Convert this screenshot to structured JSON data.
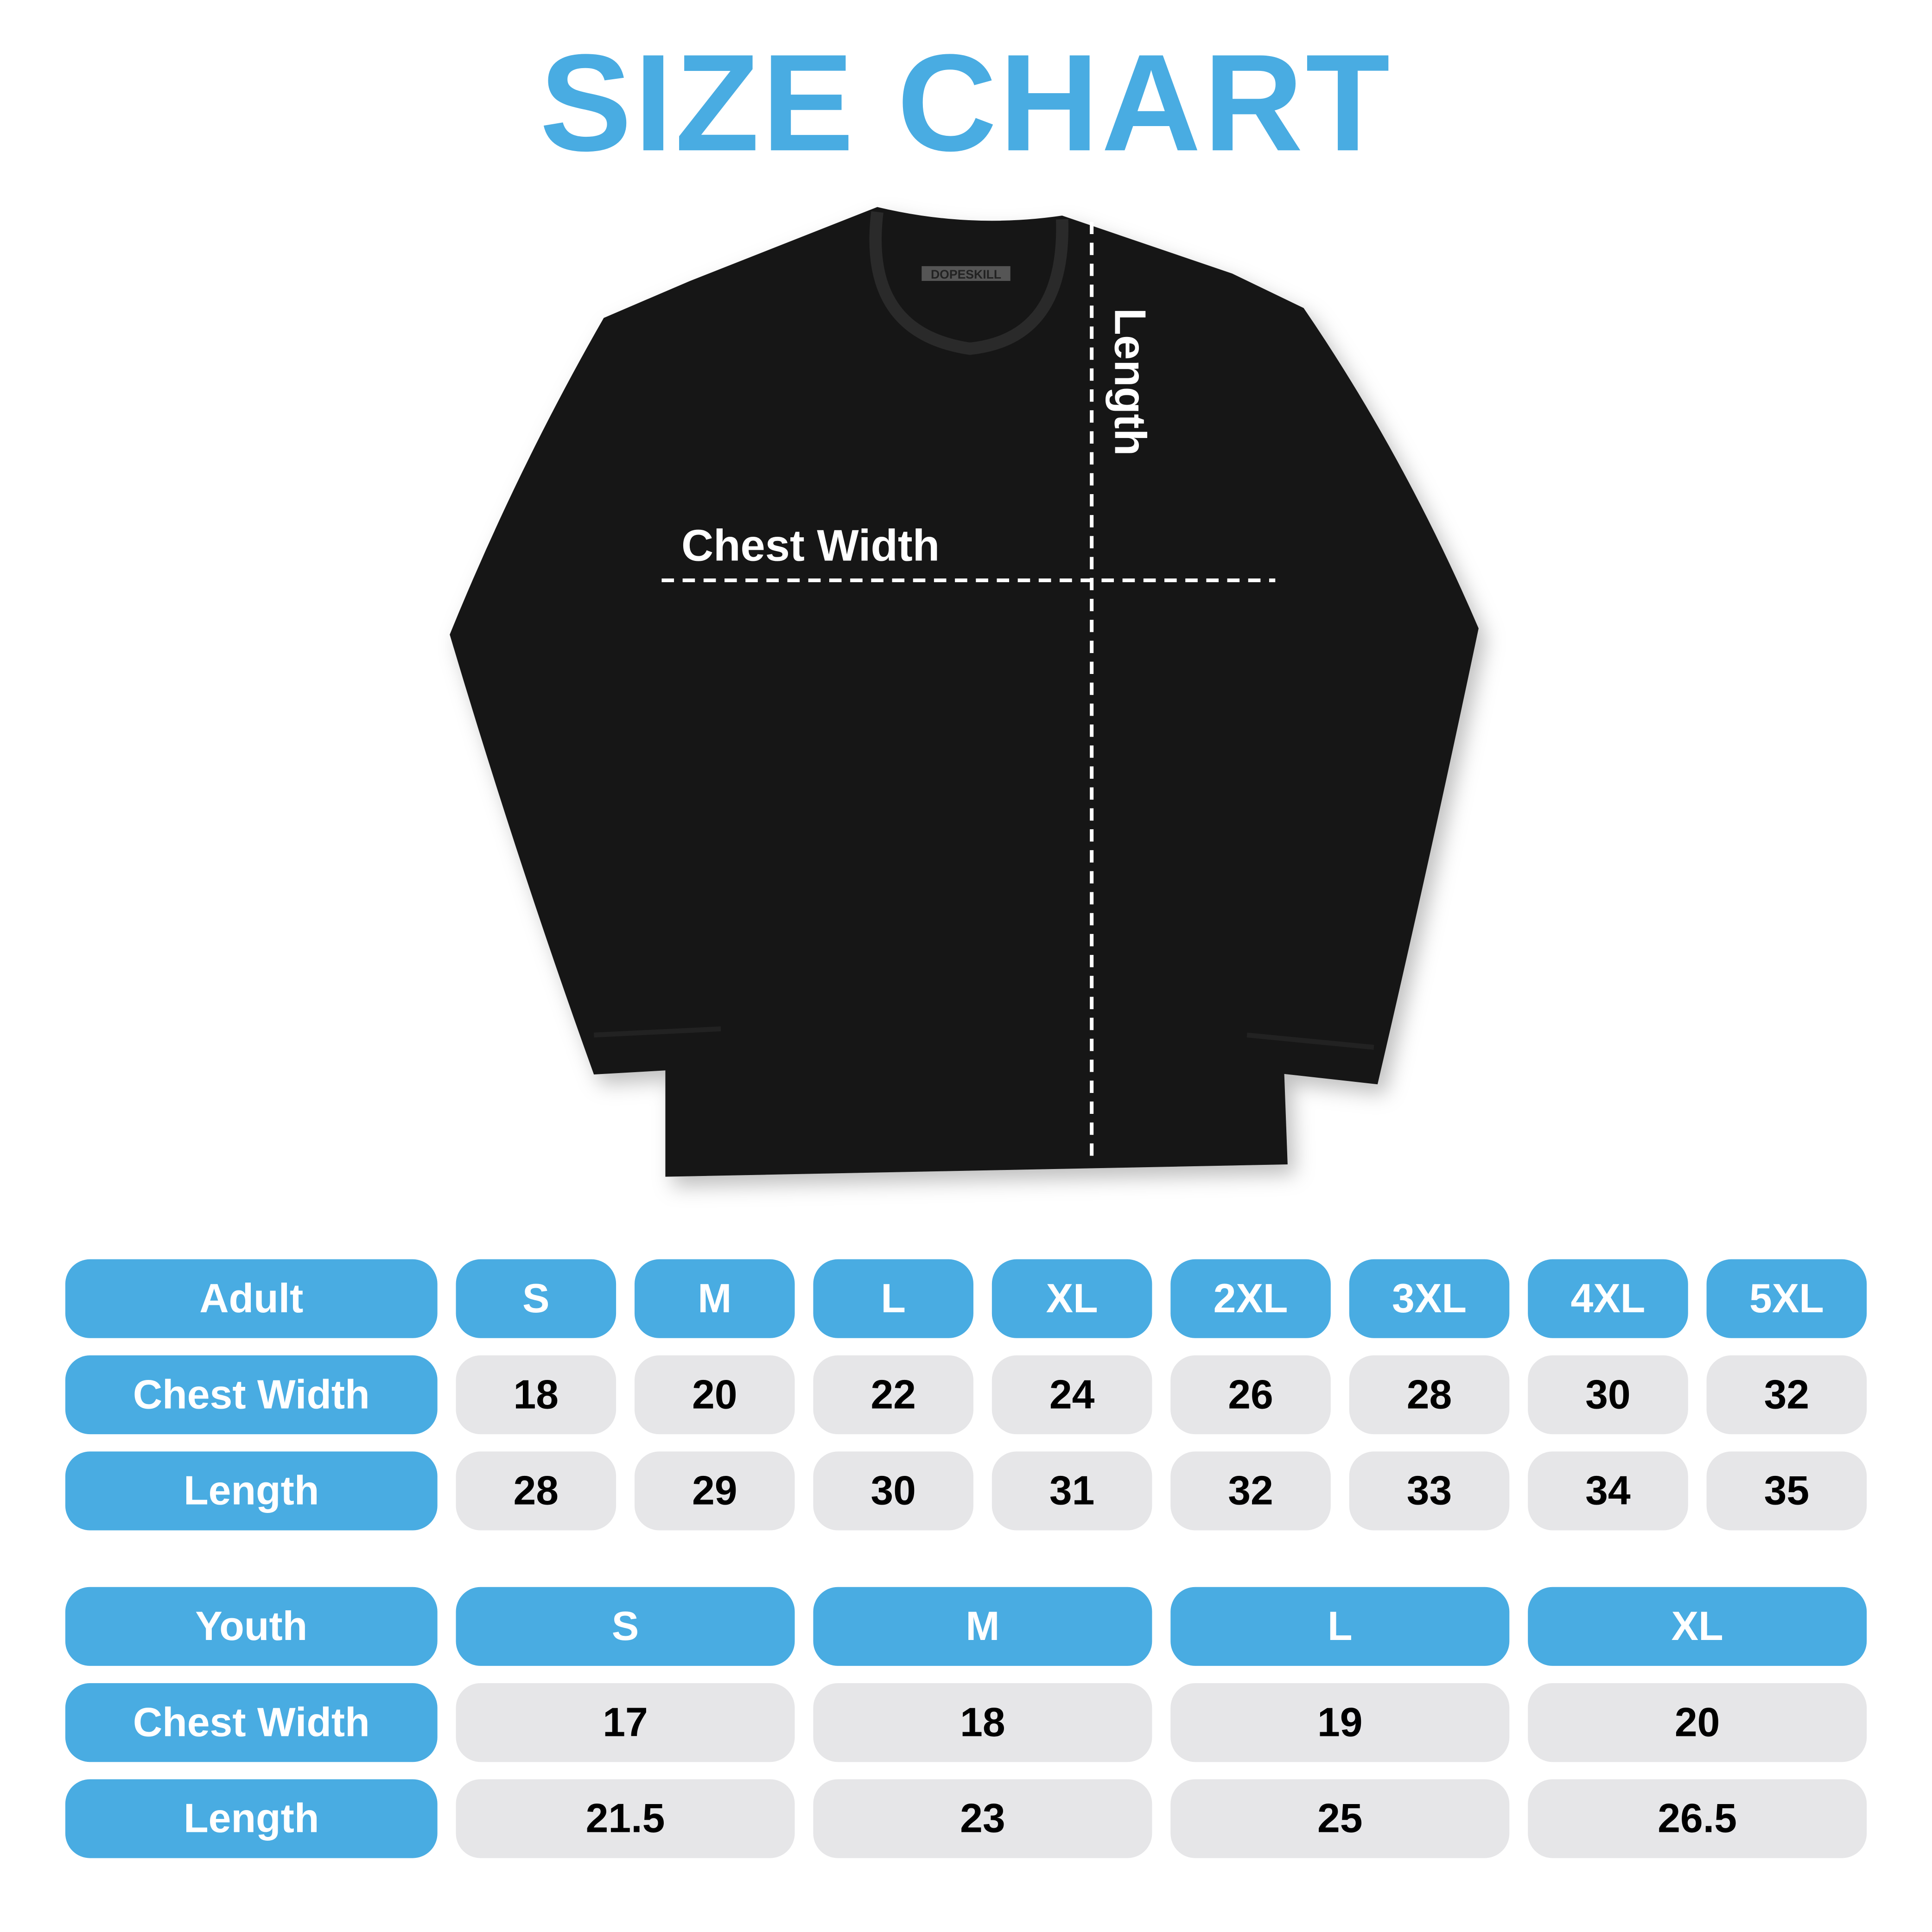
{
  "title": "SIZE CHART",
  "shirt": {
    "brand_tag": "DOPESKILL",
    "chest_label": "Chest Width",
    "length_label": "Length"
  },
  "colors": {
    "accent": "#49ace2",
    "cell_bg": "#e6e6e8",
    "shirt": "#111111"
  },
  "adult": {
    "header": "Adult",
    "sizes": [
      "S",
      "M",
      "L",
      "XL",
      "2XL",
      "3XL",
      "4XL",
      "5XL"
    ],
    "rows": [
      {
        "label": "Chest Width",
        "values": [
          "18",
          "20",
          "22",
          "24",
          "26",
          "28",
          "30",
          "32"
        ]
      },
      {
        "label": "Length",
        "values": [
          "28",
          "29",
          "30",
          "31",
          "32",
          "33",
          "34",
          "35"
        ]
      }
    ]
  },
  "youth": {
    "header": "Youth",
    "sizes": [
      "S",
      "M",
      "L",
      "XL"
    ],
    "rows": [
      {
        "label": "Chest Width",
        "values": [
          "17",
          "18",
          "19",
          "20"
        ]
      },
      {
        "label": "Length",
        "values": [
          "21.5",
          "23",
          "25",
          "26.5"
        ]
      }
    ]
  }
}
